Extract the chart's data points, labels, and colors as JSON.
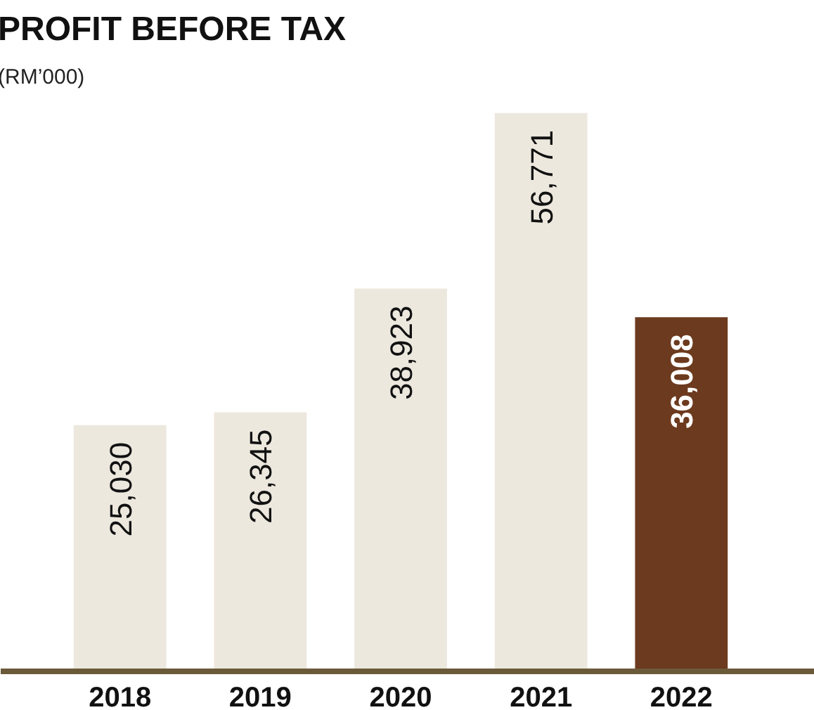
{
  "chart_data": {
    "type": "bar",
    "title": "PROFIT BEFORE TAX",
    "subtitle": "(RM’000)",
    "categories": [
      "2018",
      "2019",
      "2020",
      "2021",
      "2022"
    ],
    "values": [
      25030,
      26345,
      38923,
      56771,
      36008
    ],
    "value_labels": [
      "25,030",
      "26,345",
      "38,923",
      "56,771",
      "36,008"
    ],
    "colors": [
      "#ede8de",
      "#ede8de",
      "#ede8de",
      "#ede8de",
      "#6c3a1e"
    ]
  }
}
